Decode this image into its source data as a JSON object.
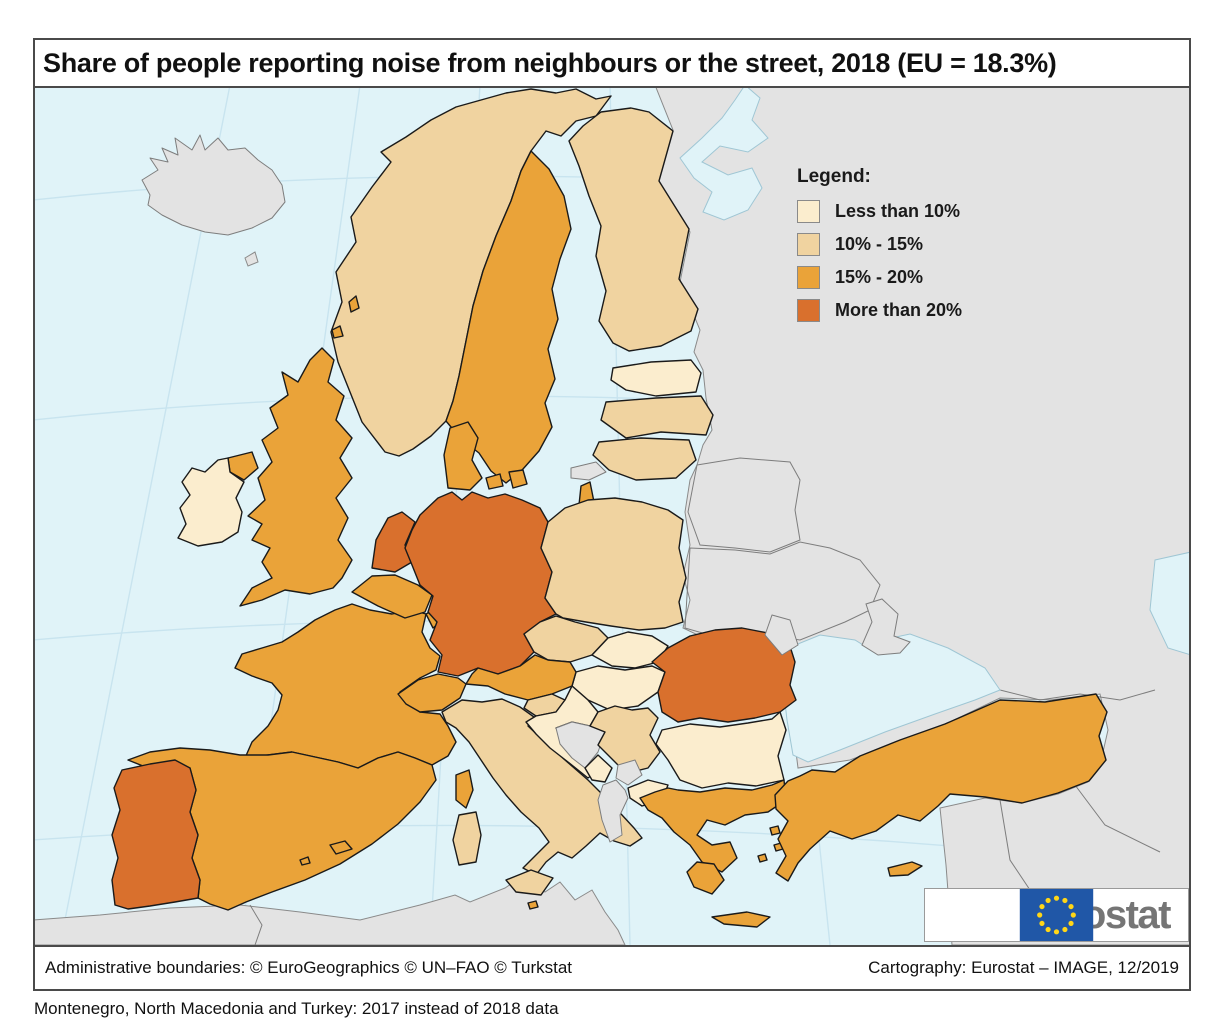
{
  "title": "Share of people reporting noise from neighbours or the street, 2018 (EU = 18.3%)",
  "legend": {
    "heading": "Legend:",
    "items": [
      {
        "key": "lt10",
        "label": "Less than 10%",
        "color": "#FBEDCE"
      },
      {
        "key": "r10_15",
        "label": "10% - 15%",
        "color": "#F0D3A0"
      },
      {
        "key": "r15_20",
        "label": "15% - 20%",
        "color": "#EAA339"
      },
      {
        "key": "gt20",
        "label": "More than 20%",
        "color": "#D9702D"
      }
    ],
    "no_data_color": "#E3E3E3",
    "sea_color": "#E0F3F8"
  },
  "map": {
    "countries": [
      {
        "name": "Norway",
        "category": "r10_15"
      },
      {
        "name": "Sweden",
        "category": "r15_20"
      },
      {
        "name": "Finland",
        "category": "r10_15"
      },
      {
        "name": "Estonia",
        "category": "lt10"
      },
      {
        "name": "Latvia",
        "category": "r10_15"
      },
      {
        "name": "Lithuania",
        "category": "r10_15"
      },
      {
        "name": "Kaliningrad (RU)",
        "category": "no_data"
      },
      {
        "name": "Denmark",
        "category": "r15_20"
      },
      {
        "name": "United Kingdom",
        "category": "r15_20"
      },
      {
        "name": "Ireland",
        "category": "lt10"
      },
      {
        "name": "France",
        "category": "r15_20"
      },
      {
        "name": "Netherlands",
        "category": "gt20"
      },
      {
        "name": "Belgium",
        "category": "r15_20"
      },
      {
        "name": "Luxembourg",
        "category": "r15_20"
      },
      {
        "name": "Germany",
        "category": "gt20"
      },
      {
        "name": "Poland",
        "category": "r10_15"
      },
      {
        "name": "Czechia",
        "category": "r10_15"
      },
      {
        "name": "Slovakia",
        "category": "lt10"
      },
      {
        "name": "Hungary",
        "category": "lt10"
      },
      {
        "name": "Austria",
        "category": "r15_20"
      },
      {
        "name": "Switzerland",
        "category": "r15_20"
      },
      {
        "name": "Spain",
        "category": "r15_20"
      },
      {
        "name": "Portugal",
        "category": "gt20"
      },
      {
        "name": "Italy",
        "category": "r10_15"
      },
      {
        "name": "Slovenia",
        "category": "r10_15"
      },
      {
        "name": "Croatia",
        "category": "lt10"
      },
      {
        "name": "Bosnia and Herzegovina",
        "category": "no_data"
      },
      {
        "name": "Serbia",
        "category": "r10_15"
      },
      {
        "name": "Montenegro",
        "category": "lt10"
      },
      {
        "name": "Kosovo",
        "category": "no_data"
      },
      {
        "name": "Albania",
        "category": "no_data"
      },
      {
        "name": "North Macedonia",
        "category": "lt10"
      },
      {
        "name": "Romania",
        "category": "gt20"
      },
      {
        "name": "Bulgaria",
        "category": "lt10"
      },
      {
        "name": "Greece",
        "category": "r15_20"
      },
      {
        "name": "Turkey",
        "category": "r15_20"
      },
      {
        "name": "Cyprus",
        "category": "r15_20"
      },
      {
        "name": "Malta",
        "category": "r15_20"
      },
      {
        "name": "Iceland",
        "category": "no_data"
      },
      {
        "name": "Moldova",
        "category": "no_data"
      }
    ]
  },
  "footer": {
    "left": "Administrative boundaries: © EuroGeographics © UN–FAO © Turkstat",
    "right": "Cartography: Eurostat – IMAGE, 12/2019"
  },
  "note": "Montenegro, North Macedonia and Turkey: 2017 instead of 2018 data",
  "logo": {
    "text": "eurostat"
  }
}
